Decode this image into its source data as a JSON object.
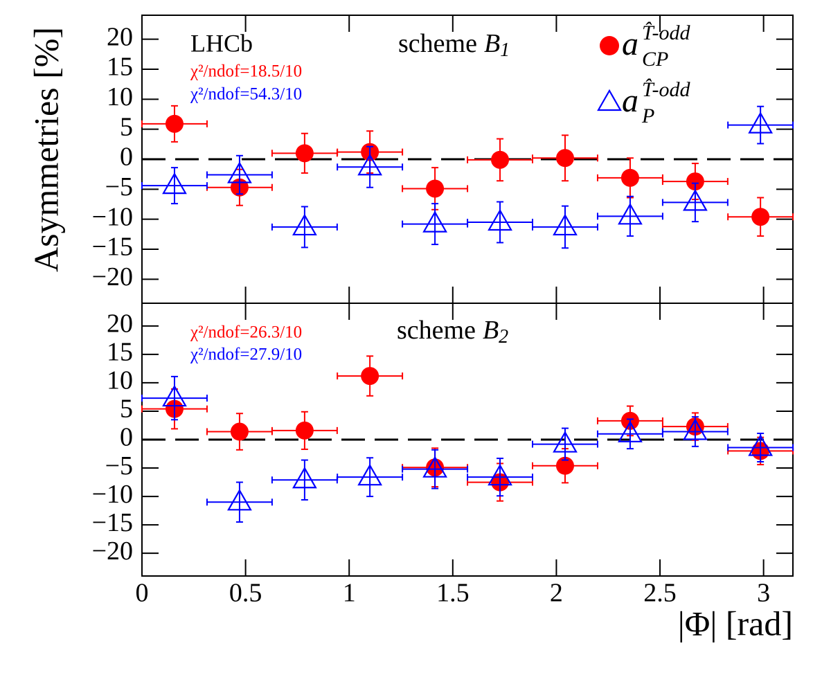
{
  "chart_data": [
    {
      "type": "scatter",
      "y_label": "Asymmetries [%]",
      "x": [
        0.157,
        0.471,
        0.785,
        1.1,
        1.414,
        1.728,
        2.042,
        2.356,
        2.67,
        2.985
      ],
      "xerr": 0.157,
      "xlim": [
        0,
        3.14159
      ],
      "xticks": [
        0,
        0.5,
        1,
        1.5,
        2,
        2.5,
        3
      ],
      "ylim": [
        -24,
        24
      ],
      "yticks": [
        {
          "value": -20,
          "label": "−20"
        },
        {
          "value": -15,
          "label": "−15"
        },
        {
          "value": -10,
          "label": "−10"
        },
        {
          "value": -5,
          "label": "−5"
        },
        0,
        5,
        10,
        15,
        20
      ],
      "legend": "upper right",
      "annotations": [
        {
          "text": "LHCb",
          "color": "#000000"
        },
        {
          "text": "χ²/ndof=18.5/10",
          "color": "#ff0000"
        },
        {
          "text": "χ²/ndof=54.3/10",
          "color": "#0000ff"
        }
      ],
      "label": [
        "scheme",
        "B",
        "1"
      ],
      "series": [
        {
          "name": "a",
          "sub": "CP",
          "sup": "T̂-odd",
          "color": "#ff0000",
          "marker": "circle",
          "values": [
            5.9,
            -4.7,
            1.0,
            1.2,
            -4.9,
            -0.1,
            0.2,
            -3.1,
            -3.7,
            -9.6
          ],
          "errors": [
            3.0,
            3.0,
            3.3,
            3.5,
            3.5,
            3.5,
            3.8,
            3.3,
            3.0,
            3.2
          ]
        },
        {
          "name": "a",
          "sub": "P",
          "sup": "T̂-odd",
          "color": "#0000ff",
          "marker": "triangle",
          "values": [
            -4.4,
            -2.6,
            -11.3,
            -1.3,
            -10.8,
            -10.5,
            -11.3,
            -9.5,
            -7.2,
            5.7
          ],
          "errors": [
            3.0,
            3.2,
            3.4,
            3.4,
            3.4,
            3.4,
            3.5,
            3.3,
            3.2,
            3.1
          ]
        }
      ]
    },
    {
      "type": "scatter",
      "x_label": "|Φ| [rad]",
      "x": [
        0.157,
        0.471,
        0.785,
        1.1,
        1.414,
        1.728,
        2.042,
        2.356,
        2.67,
        2.985
      ],
      "xerr": 0.157,
      "xlim": [
        0,
        3.14159
      ],
      "xticks": [
        0,
        0.5,
        1,
        1.5,
        2,
        2.5,
        3
      ],
      "ylim": [
        -24,
        24
      ],
      "yticks": [
        {
          "value": -20,
          "label": "−20"
        },
        {
          "value": -15,
          "label": "−15"
        },
        {
          "value": -10,
          "label": "−10"
        },
        {
          "value": -5,
          "label": "−5"
        },
        0,
        5,
        10,
        15,
        20
      ],
      "annotations": [
        {
          "text": "χ²/ndof=26.3/10",
          "color": "#ff0000"
        },
        {
          "text": "χ²/ndof=27.9/10",
          "color": "#0000ff"
        }
      ],
      "label": [
        "scheme",
        "B",
        "2"
      ],
      "series": [
        {
          "color": "#ff0000",
          "marker": "circle",
          "values": [
            5.4,
            1.4,
            1.6,
            11.2,
            -4.9,
            -7.5,
            -4.6,
            3.3,
            2.3,
            -2.0
          ],
          "errors": [
            3.5,
            3.2,
            3.3,
            3.5,
            3.4,
            3.3,
            3.0,
            2.6,
            2.4,
            2.4
          ]
        },
        {
          "color": "#0000ff",
          "marker": "triangle",
          "values": [
            7.3,
            -11.0,
            -7.1,
            -6.6,
            -5.2,
            -6.6,
            -0.8,
            1.0,
            1.4,
            -1.4
          ],
          "errors": [
            3.8,
            3.5,
            3.5,
            3.4,
            3.4,
            3.3,
            2.8,
            2.6,
            2.6,
            2.5
          ]
        }
      ]
    }
  ]
}
